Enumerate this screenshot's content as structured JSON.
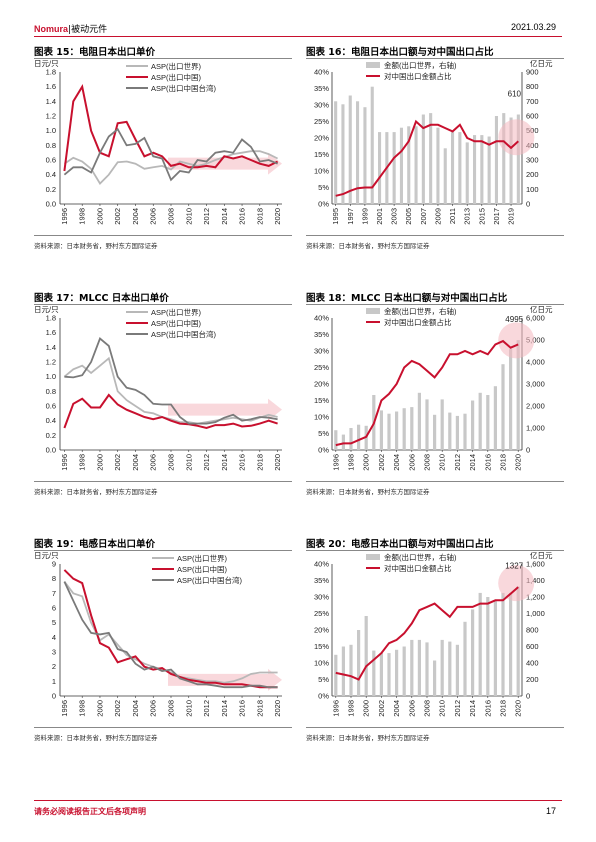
{
  "header": {
    "brand": "Nomura",
    "section": "被动元件",
    "date": "2021.03.29"
  },
  "footer": {
    "disclaimer": "请务必阅读报告正文后各项声明",
    "page": "17"
  },
  "colors": {
    "world": "#b8b8b8",
    "china": "#c8102e",
    "taiwan": "#7a7a7a",
    "bar": "#c8c8c8",
    "accent": "#c8102e"
  },
  "charts": [
    {
      "title": "图表 15：电阻日本出口单价",
      "source": "资料来源：日本财务省，野村东方国际证券",
      "chart_data": {
        "type": "line",
        "ylabel": "日元/只",
        "ylim": [
          0,
          1.8
        ],
        "yticks": [
          "0.0",
          "0.2",
          "0.4",
          "0.6",
          "0.8",
          "1.0",
          "1.2",
          "1.4",
          "1.6",
          "1.8"
        ],
        "x": [
          1996,
          1997,
          1998,
          1999,
          2000,
          2001,
          2002,
          2003,
          2004,
          2005,
          2006,
          2007,
          2008,
          2009,
          2010,
          2011,
          2012,
          2013,
          2014,
          2015,
          2016,
          2017,
          2018,
          2019,
          2020
        ],
        "xticks": [
          "1996",
          "1998",
          "2000",
          "2002",
          "2004",
          "2006",
          "2008",
          "2010",
          "2012",
          "2014",
          "2016",
          "2018",
          "2020"
        ],
        "series": [
          {
            "name": "ASP(出口世界)",
            "color": "#b8b8b8",
            "values": [
              0.55,
              0.63,
              0.58,
              0.48,
              0.28,
              0.4,
              0.57,
              0.58,
              0.55,
              0.48,
              0.5,
              0.52,
              0.47,
              0.58,
              0.55,
              0.52,
              0.55,
              0.6,
              0.64,
              0.68,
              0.7,
              0.72,
              0.72,
              0.68,
              0.62
            ]
          },
          {
            "name": "ASP(出口中国)",
            "color": "#c8102e",
            "values": [
              0.45,
              1.4,
              1.6,
              1.0,
              0.7,
              0.65,
              1.1,
              1.12,
              0.88,
              0.65,
              0.7,
              0.65,
              0.52,
              0.55,
              0.5,
              0.5,
              0.52,
              0.5,
              0.65,
              0.62,
              0.65,
              0.6,
              0.55,
              0.52,
              0.58
            ]
          },
          {
            "name": "ASP(出口中国台湾)",
            "color": "#7a7a7a",
            "values": [
              0.4,
              0.5,
              0.5,
              0.43,
              0.7,
              0.92,
              1.02,
              0.8,
              0.82,
              0.9,
              0.65,
              0.62,
              0.33,
              0.45,
              0.43,
              0.6,
              0.58,
              0.7,
              0.72,
              0.7,
              0.88,
              0.78,
              0.58,
              0.6,
              0.55
            ]
          }
        ]
      }
    },
    {
      "title": "图表 16：电阻日本出口额与对中国出口占比",
      "source": "资料来源：日本财务省，野村东方国际证券",
      "chart_data": {
        "type": "bar+line",
        "ylabel_right": "亿日元",
        "ylim_left": [
          0,
          0.4
        ],
        "ylim_right": [
          0,
          900
        ],
        "yticks_left": [
          "0%",
          "5%",
          "10%",
          "15%",
          "20%",
          "25%",
          "30%",
          "35%",
          "40%"
        ],
        "yticks_right": [
          "0",
          "100",
          "200",
          "300",
          "400",
          "500",
          "600",
          "700",
          "800",
          "900"
        ],
        "x": [
          1995,
          1996,
          1997,
          1998,
          1999,
          2000,
          2001,
          2002,
          2003,
          2004,
          2005,
          2006,
          2007,
          2008,
          2009,
          2010,
          2011,
          2012,
          2013,
          2014,
          2015,
          2016,
          2017,
          2018,
          2019,
          2020
        ],
        "xticks": [
          "1995",
          "1997",
          "1999",
          "2001",
          "2003",
          "2005",
          "2007",
          "2009",
          "2011",
          "2013",
          "2015",
          "2017",
          "2019"
        ],
        "callout": "610",
        "series": [
          {
            "name": "金额(出口世界，右轴)",
            "type": "bar",
            "axis": "right",
            "color": "#c8c8c8",
            "values": [
              700,
              680,
              740,
              700,
              660,
              800,
              490,
              490,
              490,
              520,
              530,
              530,
              610,
              620,
              520,
              380,
              490,
              490,
              420,
              470,
              470,
              460,
              600,
              620,
              590,
              610
            ]
          },
          {
            "name": "对中国出口金额占比",
            "type": "line",
            "axis": "left",
            "color": "#c8102e",
            "values": [
              0.025,
              0.03,
              0.04,
              0.048,
              0.05,
              0.05,
              0.08,
              0.11,
              0.14,
              0.16,
              0.19,
              0.25,
              0.23,
              0.24,
              0.24,
              0.23,
              0.22,
              0.24,
              0.2,
              0.19,
              0.19,
              0.18,
              0.19,
              0.19,
              0.17,
              0.19
            ]
          }
        ]
      }
    },
    {
      "title": "图表 17：MLCC 日本出口单价",
      "source": "资料来源：日本财务省，野村东方国际证券",
      "chart_data": {
        "type": "line",
        "ylabel": "日元/只",
        "ylim": [
          0,
          1.8
        ],
        "yticks": [
          "0.0",
          "0.2",
          "0.4",
          "0.6",
          "0.8",
          "1.0",
          "1.2",
          "1.4",
          "1.6",
          "1.8"
        ],
        "x": [
          1996,
          1997,
          1998,
          1999,
          2000,
          2001,
          2002,
          2003,
          2004,
          2005,
          2006,
          2007,
          2008,
          2009,
          2010,
          2011,
          2012,
          2013,
          2014,
          2015,
          2016,
          2017,
          2018,
          2019,
          2020
        ],
        "xticks": [
          "1996",
          "1998",
          "2000",
          "2002",
          "2004",
          "2006",
          "2008",
          "2010",
          "2012",
          "2014",
          "2016",
          "2018",
          "2020"
        ],
        "series": [
          {
            "name": "ASP(出口世界)",
            "color": "#b8b8b8",
            "values": [
              1.0,
              1.1,
              1.15,
              1.05,
              1.15,
              1.25,
              0.8,
              0.68,
              0.6,
              0.52,
              0.5,
              0.45,
              0.42,
              0.38,
              0.38,
              0.36,
              0.38,
              0.4,
              0.42,
              0.44,
              0.42,
              0.4,
              0.44,
              0.48,
              0.45
            ]
          },
          {
            "name": "ASP(出口中国)",
            "color": "#c8102e",
            "values": [
              0.3,
              0.63,
              0.7,
              0.58,
              0.58,
              0.75,
              0.62,
              0.55,
              0.5,
              0.45,
              0.42,
              0.45,
              0.4,
              0.36,
              0.35,
              0.33,
              0.3,
              0.34,
              0.34,
              0.36,
              0.32,
              0.33,
              0.36,
              0.4,
              0.36
            ]
          },
          {
            "name": "ASP(出口中国台湾)",
            "color": "#7a7a7a",
            "values": [
              1.0,
              0.99,
              1.02,
              1.2,
              1.52,
              1.42,
              1.0,
              0.85,
              0.82,
              0.75,
              0.63,
              0.62,
              0.62,
              0.45,
              0.36,
              0.36,
              0.36,
              0.38,
              0.44,
              0.48,
              0.4,
              0.42,
              0.45,
              0.44,
              0.42
            ]
          }
        ]
      }
    },
    {
      "title": "图表 18：MLCC 日本出口额与对中国出口占比",
      "source": "资料来源：日本财务省，野村东方国际证券",
      "chart_data": {
        "type": "bar+line",
        "ylabel_right": "亿日元",
        "ylim_left": [
          0,
          0.4
        ],
        "ylim_right": [
          0,
          6000
        ],
        "yticks_left": [
          "0%",
          "5%",
          "10%",
          "15%",
          "20%",
          "25%",
          "30%",
          "35%",
          "40%"
        ],
        "yticks_right": [
          "0",
          "1,000",
          "2,000",
          "3,000",
          "4,000",
          "5,000",
          "6,000"
        ],
        "x": [
          1996,
          1997,
          1998,
          1999,
          2000,
          2001,
          2002,
          2003,
          2004,
          2005,
          2006,
          2007,
          2008,
          2009,
          2010,
          2011,
          2012,
          2013,
          2014,
          2015,
          2016,
          2017,
          2018,
          2019,
          2020
        ],
        "xticks": [
          "1996",
          "1998",
          "2000",
          "2002",
          "2004",
          "2006",
          "2008",
          "2010",
          "2012",
          "2014",
          "2016",
          "2018",
          "2020"
        ],
        "callout": "4995",
        "series": [
          {
            "name": "金额(出口世界，右轴)",
            "type": "bar",
            "axis": "right",
            "color": "#c8c8c8",
            "values": [
              900,
              700,
              1000,
              1150,
              1100,
              2500,
              1800,
              1650,
              1750,
              1900,
              1950,
              2600,
              2300,
              1600,
              2300,
              1700,
              1550,
              1650,
              2250,
              2600,
              2500,
              2900,
              3900,
              4600,
              4995
            ]
          },
          {
            "name": "对中国出口金额占比",
            "type": "line",
            "axis": "left",
            "color": "#c8102e",
            "values": [
              0.015,
              0.02,
              0.02,
              0.03,
              0.04,
              0.08,
              0.15,
              0.17,
              0.2,
              0.25,
              0.27,
              0.26,
              0.24,
              0.22,
              0.25,
              0.29,
              0.29,
              0.3,
              0.29,
              0.3,
              0.29,
              0.32,
              0.33,
              0.31,
              0.32
            ]
          }
        ]
      }
    },
    {
      "title": "图表 19：电感日本出口单价",
      "source": "资料来源：日本财务省，野村东方国际证券",
      "chart_data": {
        "type": "line",
        "ylabel": "日元/只",
        "ylim": [
          0,
          9
        ],
        "yticks": [
          "0",
          "1",
          "2",
          "3",
          "4",
          "5",
          "6",
          "7",
          "8",
          "9"
        ],
        "x": [
          1996,
          1997,
          1998,
          1999,
          2000,
          2001,
          2002,
          2003,
          2004,
          2005,
          2006,
          2007,
          2008,
          2009,
          2010,
          2011,
          2012,
          2013,
          2014,
          2015,
          2016,
          2017,
          2018,
          2019,
          2020
        ],
        "xticks": [
          "1996",
          "1998",
          "2000",
          "2002",
          "2004",
          "2006",
          "2008",
          "2010",
          "2012",
          "2014",
          "2016",
          "2018",
          "2020"
        ],
        "series": [
          {
            "name": "ASP(出口世界)",
            "color": "#b8b8b8",
            "values": [
              7.8,
              7.0,
              6.8,
              5.0,
              3.8,
              4.2,
              3.5,
              2.8,
              2.5,
              2.2,
              2.0,
              1.8,
              1.6,
              1.3,
              1.2,
              1.1,
              1.0,
              1.0,
              0.9,
              1.0,
              1.2,
              1.5,
              1.6,
              1.6,
              1.6
            ]
          },
          {
            "name": "ASP(出口中国)",
            "color": "#c8102e",
            "values": [
              8.6,
              8.0,
              7.7,
              5.5,
              3.6,
              3.3,
              2.3,
              2.5,
              2.7,
              2.0,
              1.8,
              1.9,
              1.5,
              1.3,
              1.1,
              1.0,
              0.9,
              0.9,
              0.8,
              0.8,
              0.8,
              0.7,
              0.6,
              0.6,
              0.6
            ]
          },
          {
            "name": "ASP(出口中国台湾)",
            "color": "#7a7a7a",
            "values": [
              7.8,
              6.5,
              5.2,
              4.3,
              4.2,
              4.3,
              3.2,
              3.0,
              2.2,
              1.8,
              2.0,
              1.7,
              1.8,
              1.2,
              1.0,
              0.8,
              0.8,
              0.7,
              0.6,
              0.6,
              0.6,
              0.7,
              0.7,
              0.6,
              0.6
            ]
          }
        ]
      }
    },
    {
      "title": "图表 20：电感日本出口额与对中国出口占比",
      "source": "资料来源：日本财务省，野村东方国际证券",
      "chart_data": {
        "type": "bar+line",
        "ylabel_right": "亿日元",
        "ylim_left": [
          0,
          0.4
        ],
        "ylim_right": [
          0,
          1600
        ],
        "yticks_left": [
          "0%",
          "5%",
          "10%",
          "15%",
          "20%",
          "25%",
          "30%",
          "35%",
          "40%"
        ],
        "yticks_right": [
          "0",
          "200",
          "400",
          "600",
          "800",
          "1,000",
          "1,200",
          "1,400",
          "1,600"
        ],
        "x": [
          1996,
          1997,
          1998,
          1999,
          2000,
          2001,
          2002,
          2003,
          2004,
          2005,
          2006,
          2007,
          2008,
          2009,
          2010,
          2011,
          2012,
          2013,
          2014,
          2015,
          2016,
          2017,
          2018,
          2019,
          2020
        ],
        "xticks": [
          "1996",
          "1998",
          "2000",
          "2002",
          "2004",
          "2006",
          "2008",
          "2010",
          "2012",
          "2014",
          "2016",
          "2018",
          "2020"
        ],
        "callout": "1327",
        "series": [
          {
            "name": "金额(出口世界，右轴)",
            "type": "bar",
            "axis": "right",
            "color": "#c8c8c8",
            "values": [
              500,
              600,
              620,
              800,
              970,
              550,
              520,
              520,
              560,
              600,
              680,
              680,
              650,
              430,
              680,
              660,
              620,
              900,
              1050,
              1250,
              1200,
              1150,
              1250,
              1250,
              1327
            ]
          },
          {
            "name": "对中国出口金额占比",
            "type": "line",
            "axis": "left",
            "color": "#c8102e",
            "values": [
              0.07,
              0.065,
              0.06,
              0.05,
              0.09,
              0.11,
              0.13,
              0.16,
              0.17,
              0.19,
              0.22,
              0.26,
              0.27,
              0.28,
              0.26,
              0.24,
              0.27,
              0.27,
              0.27,
              0.28,
              0.28,
              0.29,
              0.29,
              0.31,
              0.33
            ]
          }
        ]
      }
    }
  ]
}
